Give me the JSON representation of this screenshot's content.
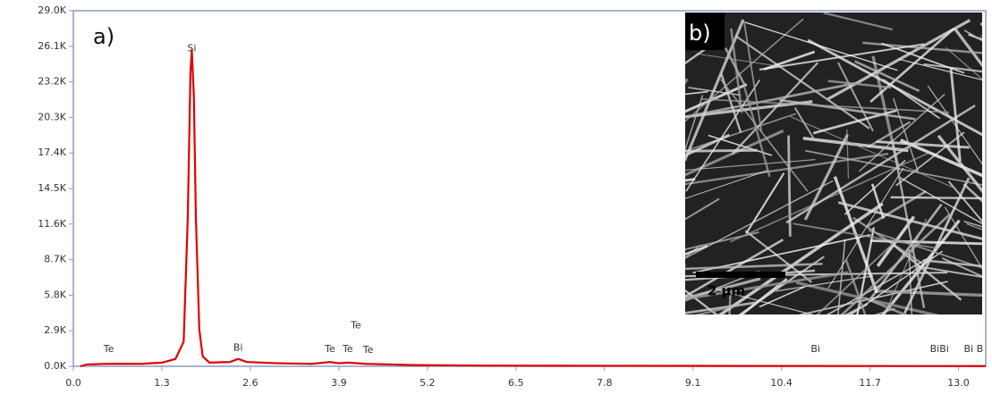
{
  "chart_data": {
    "type": "line",
    "panel_label": "a)",
    "x": [
      0.1,
      0.2,
      0.5,
      1.0,
      1.3,
      1.5,
      1.62,
      1.68,
      1.72,
      1.74,
      1.77,
      1.8,
      1.85,
      1.9,
      2.0,
      2.3,
      2.42,
      2.55,
      3.0,
      3.5,
      3.77,
      3.9,
      4.03,
      4.3,
      5.0,
      6.0,
      8.0,
      10.0,
      13.4
    ],
    "series": [
      {
        "color": "#e00000",
        "values": [
          0,
          150,
          200,
          200,
          300,
          600,
          2000,
          12000,
          24000,
          25800,
          22000,
          12000,
          3000,
          800,
          300,
          350,
          600,
          350,
          250,
          200,
          350,
          250,
          300,
          200,
          100,
          60,
          40,
          30,
          20
        ]
      }
    ],
    "xlim": [
      0,
      13.4
    ],
    "ylim": [
      0,
      29000
    ],
    "xticks": [
      {
        "value": 0,
        "label": "0.0"
      },
      1.3,
      2.6,
      3.9,
      5.2,
      6.5,
      7.8,
      9.1,
      10.4,
      11.7,
      {
        "value": 13,
        "label": "13.0"
      }
    ],
    "yticks": [
      {
        "value": 0,
        "label": "0.0K"
      },
      {
        "value": 2900,
        "label": "2.9K"
      },
      {
        "value": 5800,
        "label": "5.8K"
      },
      {
        "value": 8700,
        "label": "8.7K"
      },
      {
        "value": 11600,
        "label": "11.6K"
      },
      {
        "value": 14500,
        "label": "14.5K"
      },
      {
        "value": 17400,
        "label": "17.4K"
      },
      {
        "value": 20300,
        "label": "20.3K"
      },
      {
        "value": 23200,
        "label": "23.2K"
      },
      {
        "value": 26100,
        "label": "26.1K"
      },
      {
        "value": 29000,
        "label": "29.0K"
      }
    ],
    "annotations": [
      {
        "text": "Te",
        "x": 0.52,
        "y": 1400
      },
      {
        "text": "Si",
        "x": 1.74,
        "y": 25900
      },
      {
        "text": "Bi",
        "x": 2.42,
        "y": 1500
      },
      {
        "text": "Te",
        "x": 3.77,
        "y": 1400
      },
      {
        "text": "Te",
        "x": 4.03,
        "y": 1400
      },
      {
        "text": "Te",
        "x": 4.33,
        "y": 1300
      },
      {
        "text": "Te",
        "x": 4.15,
        "y": 3300
      },
      {
        "text": "Bi",
        "x": 10.9,
        "y": 1400
      },
      {
        "text": "BiBi",
        "x": 12.72,
        "y": 1400
      },
      {
        "text": "Bi B",
        "x": 13.22,
        "y": 1400
      }
    ],
    "inset": {
      "panel_label": "b)",
      "scale_bar": "2 µm"
    }
  }
}
